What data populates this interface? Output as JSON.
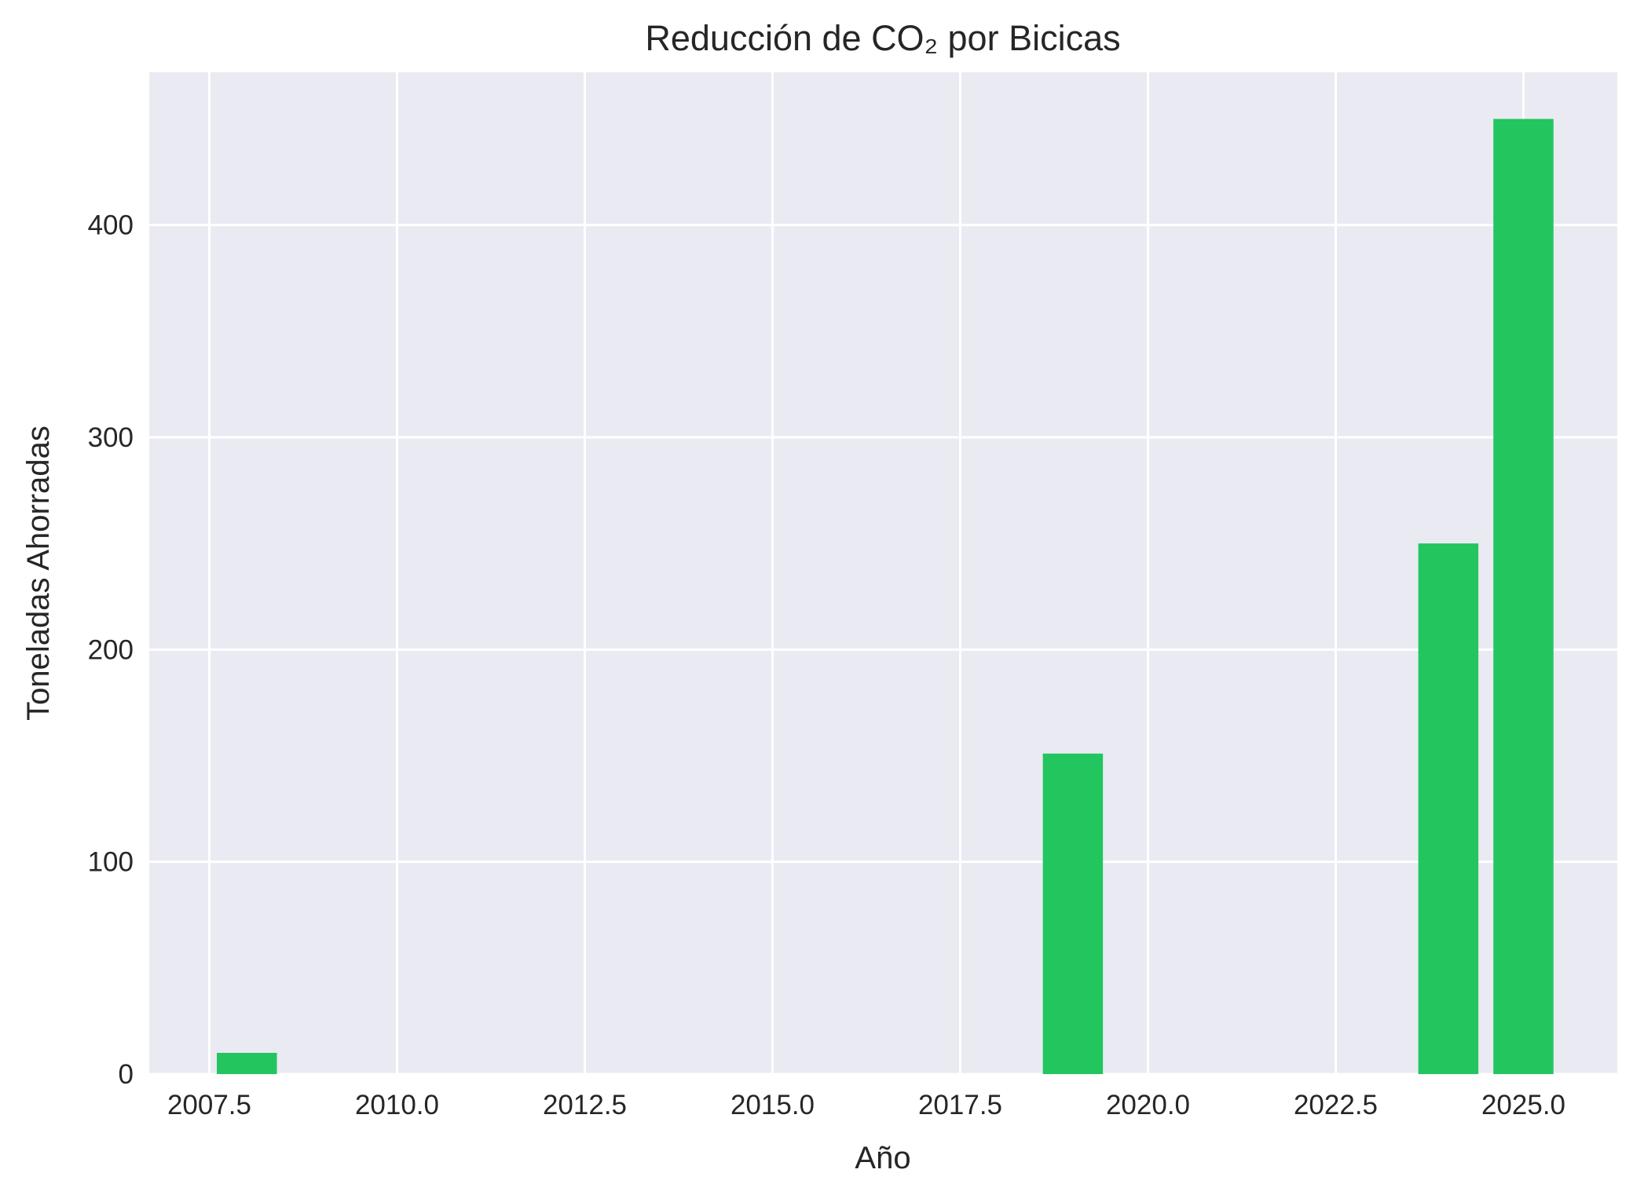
{
  "chart_data": {
    "type": "bar",
    "title": "Reducción de CO₂ por Bicicas",
    "xlabel": "Año",
    "ylabel": "Toneladas Ahorradas",
    "x": [
      2008,
      2019,
      2024,
      2025
    ],
    "values": [
      10,
      151,
      250,
      450
    ],
    "bar_width_years": 0.8,
    "xlim": [
      2006.7,
      2026.25
    ],
    "ylim": [
      0,
      472
    ],
    "xticks": [
      2007.5,
      2010.0,
      2012.5,
      2015.0,
      2017.5,
      2020.0,
      2022.5,
      2025.0
    ],
    "xtick_labels": [
      "2007.5",
      "2010.0",
      "2012.5",
      "2015.0",
      "2017.5",
      "2020.0",
      "2022.5",
      "2025.0"
    ],
    "yticks": [
      0,
      100,
      200,
      300,
      400
    ],
    "ytick_labels": [
      "0",
      "100",
      "200",
      "300",
      "400"
    ],
    "grid": true,
    "legend": "none",
    "colors": {
      "bar": "#22c55e",
      "plot_background": "#eaeaf2",
      "grid": "#ffffff",
      "text": "#262626"
    }
  }
}
